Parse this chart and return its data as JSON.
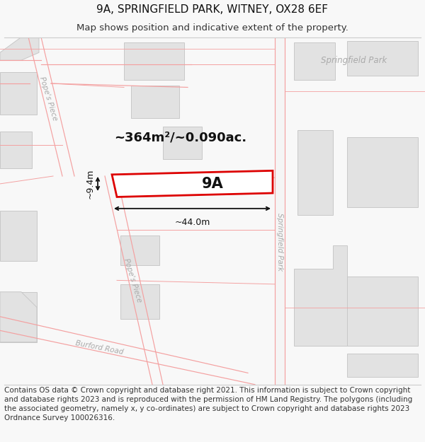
{
  "title_line1": "9A, SPRINGFIELD PARK, WITNEY, OX28 6EF",
  "title_line2": "Map shows position and indicative extent of the property.",
  "area_label": "~364m²/~0.090ac.",
  "plot_label": "9A",
  "dim_width": "~44.0m",
  "dim_height": "~9.4m",
  "road_label_left": "Pope's Piece",
  "road_label_left2": "Pope's Piece",
  "road_label_bottom": "Burford Road",
  "road_label_right": "Springfield Park",
  "area_label_right": "Springfield Park",
  "footer_text": "Contains OS data © Crown copyright and database right 2021. This information is subject to Crown copyright and database rights 2023 and is reproduced with the permission of HM Land Registry. The polygons (including the associated geometry, namely x, y co-ordinates) are subject to Crown copyright and database rights 2023 Ordnance Survey 100026316.",
  "bg_color": "#f8f8f8",
  "map_bg": "#ffffff",
  "building_fill": "#e2e2e2",
  "building_edge": "#c8c8c8",
  "road_line_color": "#f4a0a0",
  "plot_edge_color": "#dd0000",
  "plot_fill": "#ffffff",
  "dim_line_color": "#111111",
  "road_label_color": "#aaaaaa",
  "title_fontsize": 11,
  "subtitle_fontsize": 9.5,
  "footer_fontsize": 7.5
}
